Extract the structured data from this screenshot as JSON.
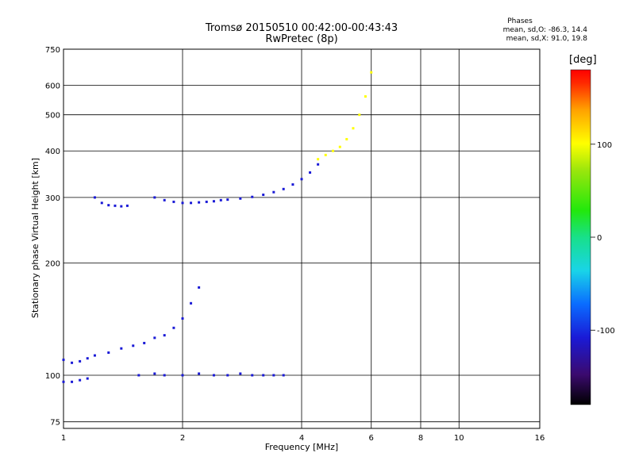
{
  "chart_data": {
    "type": "scatter",
    "title": "Tromsø 20150510 00:42:00-00:43:43",
    "subtitle": "RwPretec (8p)",
    "xlabel": "Frequency [MHz]",
    "ylabel": "Stationary phase Virtual Height [km]",
    "x_scale": "log",
    "y_scale": "log",
    "xlim": [
      1,
      16
    ],
    "ylim": [
      72,
      750
    ],
    "x_ticks": [
      "1",
      "2",
      "4",
      "6",
      "8",
      "10",
      "16"
    ],
    "y_ticks": [
      "75",
      "100",
      "200",
      "300",
      "400",
      "500",
      "600",
      "750"
    ],
    "grid": true,
    "stats": {
      "header": "Phases",
      "line_o": "mean, sd,O: -86.3, 14.4",
      "line_x": "mean, sd,X:  91.0, 19.8"
    },
    "colorbar": {
      "label": "[deg]",
      "ticks": [
        "100",
        "0",
        "-100"
      ],
      "range": [
        -180,
        180
      ],
      "colors": [
        "#000000",
        "#3b0a6e",
        "#1a1ad6",
        "#0a6cff",
        "#19d4e8",
        "#18e08a",
        "#22e80c",
        "#9be60c",
        "#ffff00",
        "#ffa200",
        "#ff2a00",
        "#ff0000"
      ]
    },
    "series": [
      {
        "type": "trace",
        "freq_mhz": [
          1.0,
          1.05,
          1.1,
          1.15,
          1.2,
          1.3,
          1.4,
          1.5,
          1.6,
          1.7,
          1.8,
          1.9,
          2.0,
          2.1,
          2.2
        ],
        "height_km": [
          110,
          108,
          109,
          111,
          113,
          115,
          118,
          120,
          122,
          126,
          128,
          134,
          142,
          156,
          172
        ],
        "phase_deg": -110
      },
      {
        "type": "trace",
        "freq_mhz": [
          1.7,
          1.8,
          1.9,
          2.0,
          2.1,
          2.2,
          2.3,
          2.4,
          2.5,
          2.6,
          2.8,
          3.0,
          3.2,
          3.4,
          3.6,
          3.8,
          4.0,
          4.2,
          4.4
        ],
        "height_km": [
          300,
          295,
          292,
          290,
          290,
          291,
          292,
          293,
          295,
          296,
          298,
          301,
          305,
          310,
          316,
          325,
          336,
          350,
          368
        ],
        "phase_deg": -110
      },
      {
        "type": "trace",
        "freq_mhz": [
          4.4,
          4.6,
          4.8,
          5.0,
          5.2,
          5.4,
          5.6,
          5.8,
          6.0
        ],
        "height_km": [
          380,
          390,
          400,
          410,
          430,
          460,
          500,
          560,
          650
        ],
        "phase_deg": 95
      },
      {
        "type": "trace",
        "freq_mhz": [
          1.2,
          1.25,
          1.3,
          1.35,
          1.4,
          1.45
        ],
        "height_km": [
          300,
          290,
          286,
          285,
          284,
          285
        ],
        "phase_deg": -110
      },
      {
        "type": "trace",
        "freq_mhz": [
          1.0,
          1.05,
          1.1,
          1.15
        ],
        "height_km": [
          96,
          96,
          97,
          98
        ],
        "phase_deg": -120
      },
      {
        "type": "trace",
        "freq_mhz": [
          1.55,
          1.7,
          1.8,
          2.0,
          2.2,
          2.4,
          2.6,
          2.8,
          3.0,
          3.2,
          3.4,
          3.6
        ],
        "height_km": [
          100,
          101,
          100,
          100,
          101,
          100,
          100,
          101,
          100,
          100,
          100,
          100
        ],
        "phase_deg": -110
      }
    ]
  }
}
